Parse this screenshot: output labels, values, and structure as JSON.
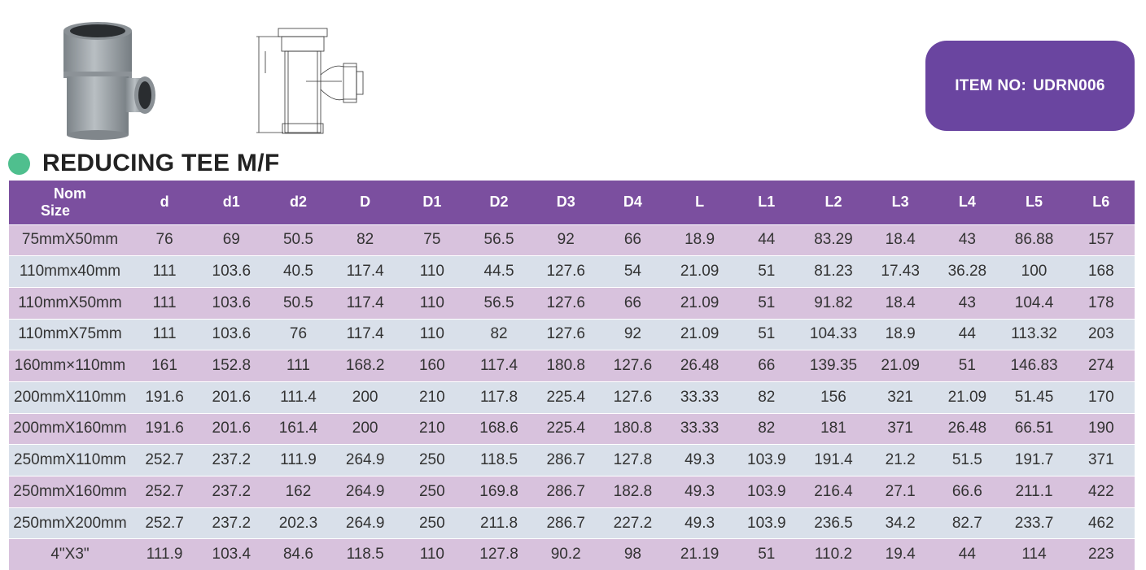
{
  "item_badge": {
    "label": "ITEM NO:",
    "value": "UDRN006"
  },
  "title": "REDUCING TEE M/F",
  "colors": {
    "header": "#7b4f9f",
    "badge": "#6a45a0",
    "row_purple": "#d8c2dd",
    "row_blue": "#d9e0ea",
    "dot": "#4fbf8e"
  },
  "table": {
    "nom_line1": "Nom",
    "nom_line2": "Size",
    "headers": [
      "d",
      "d1",
      "d2",
      "D",
      "D1",
      "D2",
      "D3",
      "D4",
      "L",
      "L1",
      "L2",
      "L3",
      "L4",
      "L5",
      "L6"
    ],
    "rows": [
      [
        "75mmX50mm",
        "76",
        "69",
        "50.5",
        "82",
        "75",
        "56.5",
        "92",
        "66",
        "18.9",
        "44",
        "83.29",
        "18.4",
        "43",
        "86.88",
        "157"
      ],
      [
        "110mmx40mm",
        "111",
        "103.6",
        "40.5",
        "117.4",
        "110",
        "44.5",
        "127.6",
        "54",
        "21.09",
        "51",
        "81.23",
        "17.43",
        "36.28",
        "100",
        "168"
      ],
      [
        "110mmX50mm",
        "111",
        "103.6",
        "50.5",
        "117.4",
        "110",
        "56.5",
        "127.6",
        "66",
        "21.09",
        "51",
        "91.82",
        "18.4",
        "43",
        "104.4",
        "178"
      ],
      [
        "110mmX75mm",
        "111",
        "103.6",
        "76",
        "117.4",
        "110",
        "82",
        "127.6",
        "92",
        "21.09",
        "51",
        "104.33",
        "18.9",
        "44",
        "113.32",
        "203"
      ],
      [
        "160mm×110mm",
        "161",
        "152.8",
        "111",
        "168.2",
        "160",
        "117.4",
        "180.8",
        "127.6",
        "26.48",
        "66",
        "139.35",
        "21.09",
        "51",
        "146.83",
        "274"
      ],
      [
        "200mmX110mm",
        "191.6",
        "201.6",
        "111.4",
        "200",
        "210",
        "117.8",
        "225.4",
        "127.6",
        "33.33",
        "82",
        "156",
        "321",
        "21.09",
        "51.45",
        "170"
      ],
      [
        "200mmX160mm",
        "191.6",
        "201.6",
        "161.4",
        "200",
        "210",
        "168.6",
        "225.4",
        "180.8",
        "33.33",
        "82",
        "181",
        "371",
        "26.48",
        "66.51",
        "190"
      ],
      [
        "250mmX110mm",
        "252.7",
        "237.2",
        "111.9",
        "264.9",
        "250",
        "118.5",
        "286.7",
        "127.8",
        "49.3",
        "103.9",
        "191.4",
        "21.2",
        "51.5",
        "191.7",
        "371"
      ],
      [
        "250mmX160mm",
        "252.7",
        "237.2",
        "162",
        "264.9",
        "250",
        "169.8",
        "286.7",
        "182.8",
        "49.3",
        "103.9",
        "216.4",
        "27.1",
        "66.6",
        "211.1",
        "422"
      ],
      [
        "250mmX200mm",
        "252.7",
        "237.2",
        "202.3",
        "264.9",
        "250",
        "211.8",
        "286.7",
        "227.2",
        "49.3",
        "103.9",
        "236.5",
        "34.2",
        "82.7",
        "233.7",
        "462"
      ],
      [
        "4\"X3\"",
        "111.9",
        "103.4",
        "84.6",
        "118.5",
        "110",
        "127.8",
        "90.2",
        "98",
        "21.19",
        "51",
        "110.2",
        "19.4",
        "44",
        "114",
        "223"
      ]
    ]
  }
}
